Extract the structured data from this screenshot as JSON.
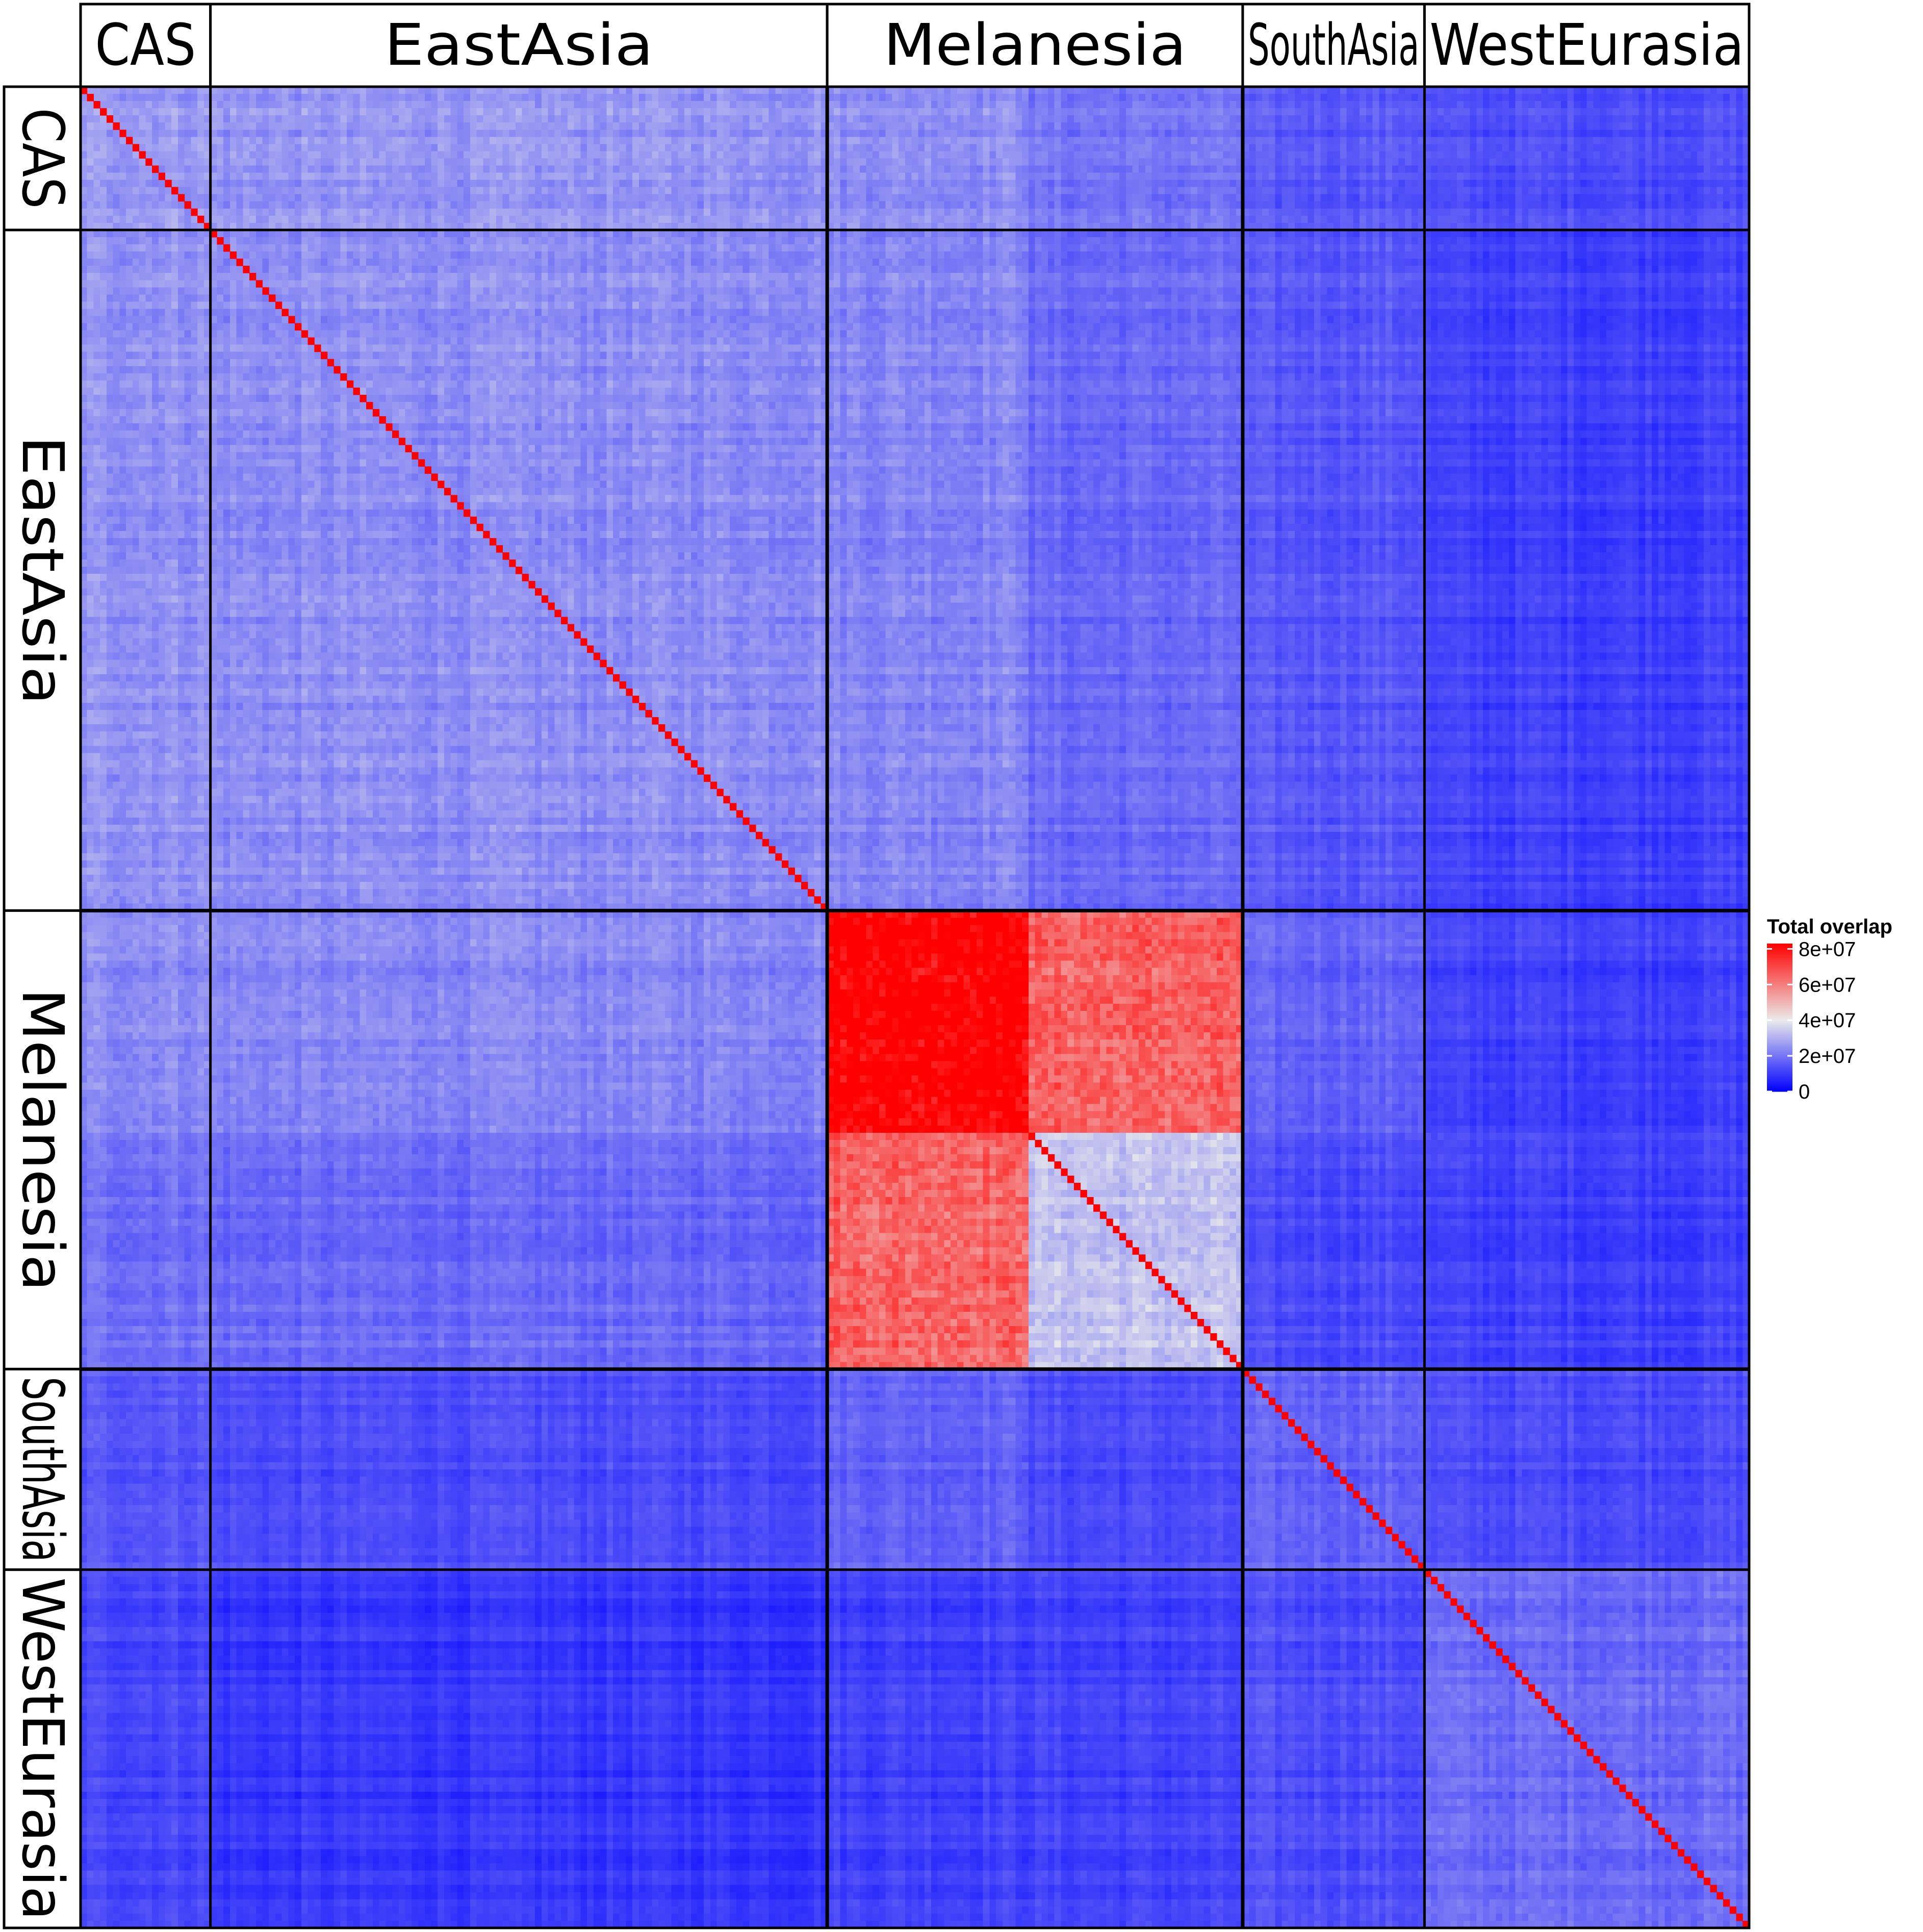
{
  "chart_data": {
    "type": "heatmap",
    "title": "",
    "groups": [
      "CAS",
      "EastAsia",
      "Melanesia",
      "SouthAsia",
      "WestEurasia"
    ],
    "column_labels": [
      "CAS",
      "EastAsia",
      "Melanesia",
      "SouthAsia",
      "WestEurasia"
    ],
    "row_labels": [
      "CAS",
      "EastAsia",
      "Melanesia",
      "SouthAsia",
      "WestEurasia"
    ],
    "group_sizes": [
      20,
      95,
      64,
      28,
      50
    ],
    "melanesia_subgroups": [
      {
        "name": "",
        "size": 31,
        "within": 85000000,
        "to_other": 65000000,
        "to_second": 42000000
      },
      {
        "name": "",
        "size": 33,
        "within": 33000000,
        "to_other": 42000000
      }
    ],
    "block_means": [
      [
        26000000,
        25000000,
        25000000,
        15000000,
        13000000
      ],
      [
        25000000,
        24000000,
        24000000,
        15000000,
        11000000
      ],
      [
        24000000,
        23000000,
        60000000,
        17000000,
        11000000
      ],
      [
        15000000,
        13000000,
        17000000,
        17000000,
        13000000
      ],
      [
        12000000,
        9000000,
        13000000,
        13000000,
        18000000
      ]
    ],
    "diagonal_value": 90000000,
    "legend": {
      "title": "Total overlap",
      "ticks": [
        "8e+07",
        "6e+07",
        "4e+07",
        "2e+07",
        "0"
      ],
      "tick_values": [
        80000000,
        60000000,
        40000000,
        20000000,
        0
      ],
      "range": [
        0,
        83000000
      ],
      "colors": {
        "low": "#0000ff",
        "mid": "#ebebeb",
        "high": "#ff0000"
      },
      "midpoint": 40000000,
      "placement": "right"
    }
  }
}
